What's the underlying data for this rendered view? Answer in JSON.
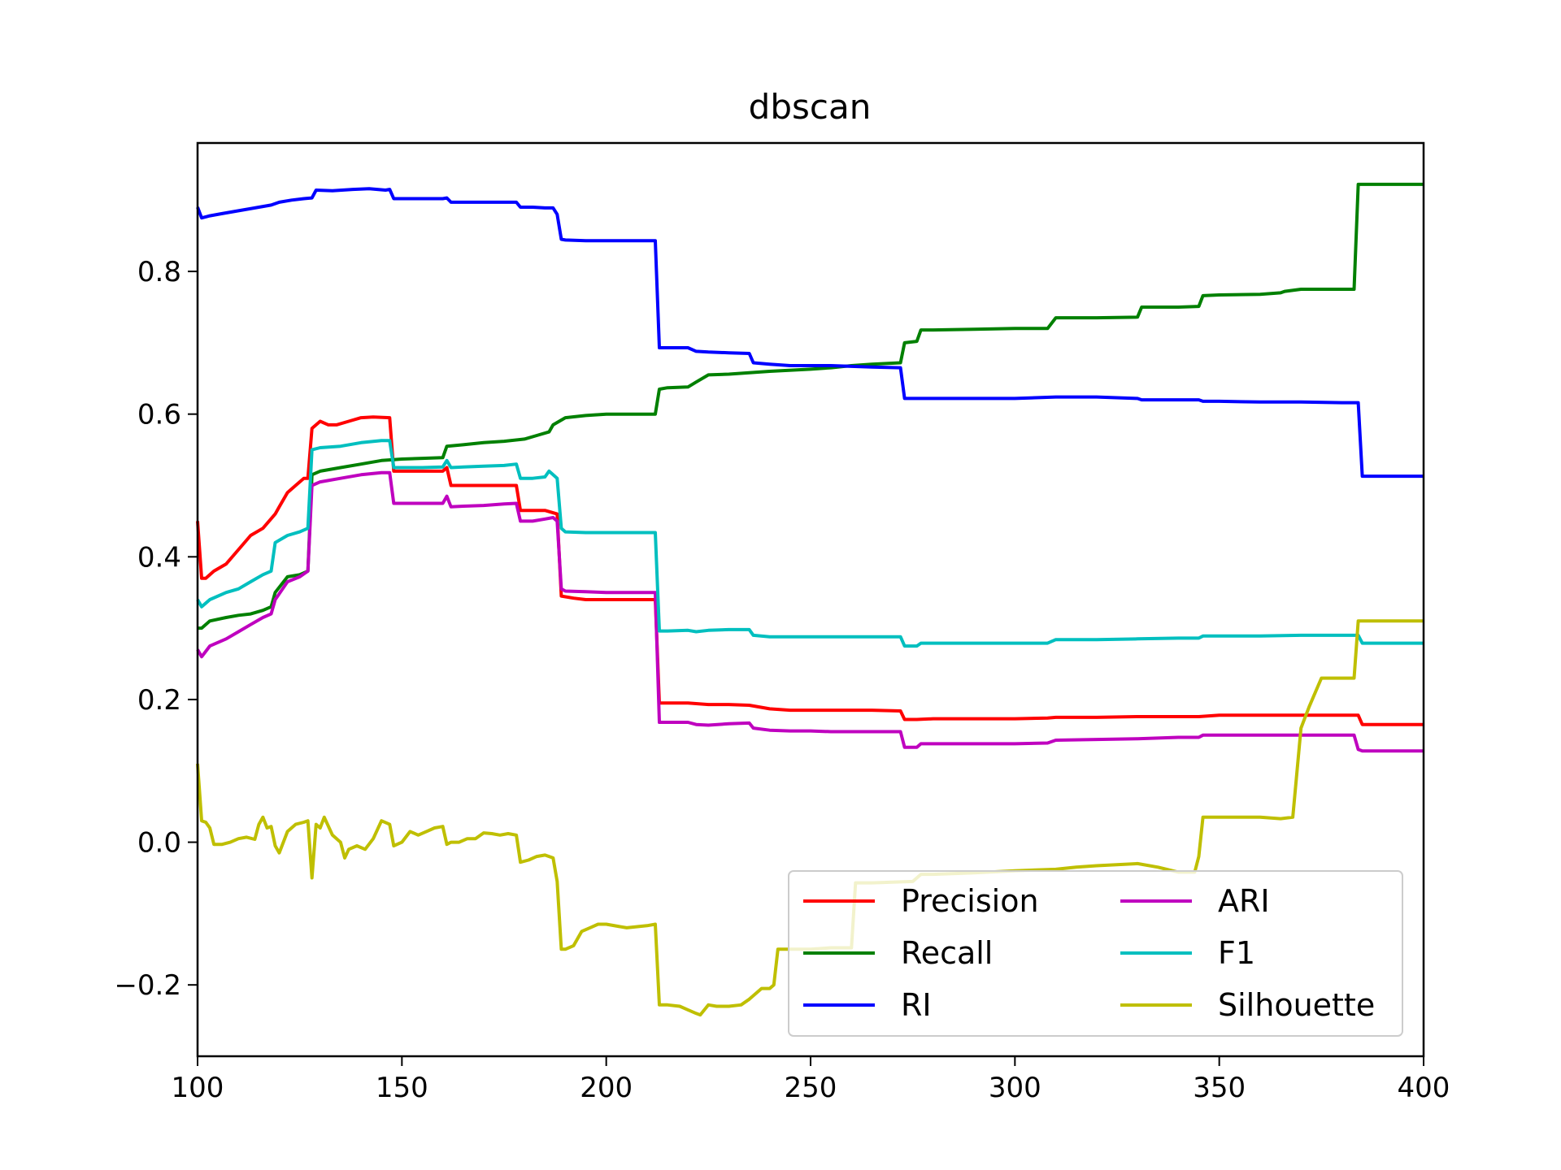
{
  "chart_data": {
    "type": "line",
    "title": "dbscan",
    "xlabel": "",
    "ylabel": "",
    "xlim": [
      100,
      400
    ],
    "ylim": [
      -0.3,
      0.98
    ],
    "xticks": [
      100,
      150,
      200,
      250,
      300,
      350,
      400
    ],
    "xtick_labels": [
      "100",
      "150",
      "200",
      "250",
      "300",
      "350",
      "400"
    ],
    "yticks": [
      -0.2,
      0.0,
      0.2,
      0.4,
      0.6,
      0.8
    ],
    "ytick_labels": [
      "−0.2",
      "0.0",
      "0.2",
      "0.4",
      "0.6",
      "0.8"
    ],
    "grid": false,
    "legend_position": "lower-right",
    "legend_columns": 2,
    "series": [
      {
        "name": "Precision",
        "color": "#ff0000",
        "x": [
          100,
          101,
          102,
          104,
          107,
          110,
          113,
          116,
          119,
          120,
          122,
          124,
          126,
          127,
          128,
          130,
          132,
          134,
          137,
          140,
          143,
          147,
          148,
          150,
          155,
          160,
          161,
          162,
          165,
          170,
          175,
          178,
          179,
          182,
          185,
          188,
          189,
          192,
          195,
          200,
          205,
          212,
          213,
          220,
          225,
          230,
          235,
          240,
          245,
          250,
          255,
          260,
          265,
          272,
          273,
          276,
          280,
          290,
          300,
          308,
          310,
          320,
          330,
          340,
          345,
          350,
          360,
          370,
          380,
          384,
          385,
          390,
          400
        ],
        "y": [
          0.45,
          0.37,
          0.37,
          0.38,
          0.39,
          0.41,
          0.43,
          0.44,
          0.46,
          0.47,
          0.49,
          0.5,
          0.51,
          0.51,
          0.58,
          0.59,
          0.585,
          0.585,
          0.59,
          0.595,
          0.596,
          0.595,
          0.52,
          0.52,
          0.52,
          0.52,
          0.525,
          0.5,
          0.5,
          0.5,
          0.5,
          0.5,
          0.465,
          0.465,
          0.465,
          0.46,
          0.345,
          0.342,
          0.34,
          0.34,
          0.34,
          0.34,
          0.195,
          0.195,
          0.193,
          0.193,
          0.192,
          0.187,
          0.185,
          0.185,
          0.185,
          0.185,
          0.185,
          0.184,
          0.172,
          0.172,
          0.173,
          0.173,
          0.173,
          0.174,
          0.175,
          0.175,
          0.176,
          0.176,
          0.176,
          0.178,
          0.178,
          0.178,
          0.178,
          0.178,
          0.165,
          0.165,
          0.165
        ]
      },
      {
        "name": "Recall",
        "color": "#008000",
        "x": [
          100,
          101,
          103,
          107,
          110,
          113,
          116,
          118,
          119,
          122,
          125,
          127,
          128,
          130,
          135,
          140,
          145,
          150,
          155,
          160,
          161,
          165,
          170,
          175,
          180,
          183,
          186,
          187,
          190,
          195,
          200,
          205,
          212,
          213,
          215,
          220,
          222,
          225,
          230,
          235,
          240,
          250,
          255,
          260,
          265,
          272,
          273,
          276,
          277,
          280,
          290,
          300,
          308,
          310,
          320,
          330,
          331,
          340,
          345,
          346,
          350,
          360,
          365,
          366,
          370,
          375,
          380,
          383,
          384,
          385,
          390,
          400
        ],
        "y": [
          0.3,
          0.3,
          0.31,
          0.315,
          0.318,
          0.32,
          0.325,
          0.33,
          0.35,
          0.372,
          0.375,
          0.38,
          0.515,
          0.52,
          0.525,
          0.53,
          0.535,
          0.537,
          0.538,
          0.539,
          0.555,
          0.557,
          0.56,
          0.562,
          0.565,
          0.57,
          0.575,
          0.585,
          0.595,
          0.598,
          0.6,
          0.6,
          0.6,
          0.635,
          0.637,
          0.638,
          0.645,
          0.655,
          0.656,
          0.658,
          0.66,
          0.663,
          0.665,
          0.668,
          0.67,
          0.672,
          0.7,
          0.702,
          0.718,
          0.718,
          0.719,
          0.72,
          0.72,
          0.735,
          0.735,
          0.736,
          0.75,
          0.75,
          0.751,
          0.766,
          0.767,
          0.768,
          0.77,
          0.772,
          0.775,
          0.775,
          0.775,
          0.775,
          0.922,
          0.922,
          0.922,
          0.922
        ]
      },
      {
        "name": "RI",
        "color": "#0000ff",
        "x": [
          100,
          101,
          103,
          106,
          110,
          115,
          118,
          120,
          123,
          126,
          128,
          129,
          133,
          138,
          142,
          146,
          147,
          148,
          150,
          155,
          160,
          161,
          162,
          165,
          170,
          175,
          178,
          179,
          182,
          185,
          187,
          188,
          189,
          190,
          195,
          200,
          212,
          213,
          215,
          220,
          222,
          225,
          230,
          235,
          236,
          240,
          245,
          250,
          255,
          260,
          265,
          272,
          273,
          276,
          280,
          290,
          300,
          310,
          320,
          330,
          331,
          340,
          345,
          346,
          350,
          360,
          370,
          380,
          383,
          384,
          385,
          390,
          400
        ],
        "y": [
          0.89,
          0.875,
          0.878,
          0.881,
          0.885,
          0.89,
          0.893,
          0.897,
          0.9,
          0.902,
          0.903,
          0.914,
          0.913,
          0.915,
          0.916,
          0.914,
          0.915,
          0.902,
          0.902,
          0.902,
          0.902,
          0.903,
          0.897,
          0.897,
          0.897,
          0.897,
          0.897,
          0.89,
          0.89,
          0.889,
          0.889,
          0.88,
          0.845,
          0.844,
          0.843,
          0.843,
          0.843,
          0.693,
          0.693,
          0.693,
          0.688,
          0.687,
          0.686,
          0.685,
          0.672,
          0.67,
          0.668,
          0.668,
          0.668,
          0.667,
          0.666,
          0.665,
          0.622,
          0.622,
          0.622,
          0.622,
          0.622,
          0.624,
          0.624,
          0.622,
          0.62,
          0.62,
          0.62,
          0.618,
          0.618,
          0.617,
          0.617,
          0.616,
          0.616,
          0.616,
          0.513,
          0.513,
          0.513
        ]
      },
      {
        "name": "ARI",
        "color": "#bf00bf",
        "x": [
          100,
          101,
          103,
          107,
          110,
          113,
          116,
          118,
          119,
          122,
          125,
          127,
          128,
          130,
          135,
          140,
          145,
          147,
          148,
          150,
          155,
          160,
          161,
          162,
          165,
          170,
          175,
          178,
          179,
          182,
          185,
          187,
          188,
          189,
          190,
          195,
          200,
          212,
          213,
          215,
          220,
          222,
          225,
          230,
          235,
          236,
          240,
          245,
          250,
          255,
          260,
          265,
          272,
          273,
          276,
          277,
          280,
          290,
          300,
          308,
          310,
          320,
          330,
          340,
          345,
          346,
          350,
          360,
          370,
          380,
          383,
          384,
          385,
          390,
          400
        ],
        "y": [
          0.27,
          0.26,
          0.275,
          0.285,
          0.295,
          0.305,
          0.315,
          0.32,
          0.34,
          0.365,
          0.372,
          0.38,
          0.5,
          0.505,
          0.51,
          0.515,
          0.518,
          0.518,
          0.475,
          0.475,
          0.475,
          0.475,
          0.485,
          0.47,
          0.471,
          0.472,
          0.474,
          0.475,
          0.45,
          0.45,
          0.453,
          0.455,
          0.45,
          0.355,
          0.352,
          0.351,
          0.35,
          0.35,
          0.168,
          0.168,
          0.168,
          0.165,
          0.164,
          0.166,
          0.167,
          0.16,
          0.157,
          0.156,
          0.156,
          0.155,
          0.155,
          0.155,
          0.155,
          0.133,
          0.133,
          0.138,
          0.138,
          0.138,
          0.138,
          0.139,
          0.143,
          0.144,
          0.145,
          0.147,
          0.147,
          0.15,
          0.15,
          0.15,
          0.15,
          0.15,
          0.15,
          0.13,
          0.128,
          0.128,
          0.128
        ]
      },
      {
        "name": "F1",
        "color": "#00bfbf",
        "x": [
          100,
          101,
          103,
          107,
          110,
          113,
          116,
          118,
          119,
          122,
          125,
          127,
          128,
          130,
          135,
          140,
          145,
          147,
          148,
          150,
          155,
          160,
          161,
          162,
          165,
          170,
          175,
          178,
          179,
          182,
          185,
          186,
          187,
          188,
          189,
          190,
          195,
          200,
          212,
          213,
          215,
          220,
          222,
          225,
          230,
          235,
          236,
          240,
          245,
          250,
          255,
          260,
          265,
          272,
          273,
          276,
          277,
          280,
          290,
          300,
          308,
          310,
          320,
          330,
          340,
          345,
          346,
          350,
          360,
          370,
          380,
          383,
          384,
          385,
          390,
          400
        ],
        "y": [
          0.34,
          0.33,
          0.34,
          0.35,
          0.355,
          0.365,
          0.375,
          0.38,
          0.42,
          0.43,
          0.435,
          0.44,
          0.55,
          0.553,
          0.555,
          0.56,
          0.563,
          0.563,
          0.525,
          0.525,
          0.525,
          0.526,
          0.535,
          0.525,
          0.526,
          0.527,
          0.528,
          0.53,
          0.51,
          0.51,
          0.512,
          0.52,
          0.515,
          0.51,
          0.44,
          0.435,
          0.434,
          0.434,
          0.434,
          0.296,
          0.296,
          0.297,
          0.295,
          0.297,
          0.298,
          0.298,
          0.29,
          0.288,
          0.288,
          0.288,
          0.288,
          0.288,
          0.288,
          0.288,
          0.275,
          0.275,
          0.279,
          0.279,
          0.279,
          0.279,
          0.279,
          0.284,
          0.284,
          0.285,
          0.286,
          0.286,
          0.289,
          0.289,
          0.289,
          0.29,
          0.29,
          0.29,
          0.29,
          0.279,
          0.279,
          0.279
        ]
      },
      {
        "name": "Silhouette",
        "color": "#bfbf00",
        "x": [
          100,
          101,
          102,
          103,
          104,
          106,
          108,
          110,
          112,
          114,
          115,
          116,
          117,
          118,
          119,
          120,
          122,
          124,
          126,
          127,
          128,
          129,
          130,
          131,
          133,
          135,
          136,
          137,
          139,
          141,
          143,
          145,
          147,
          148,
          150,
          152,
          154,
          156,
          158,
          160,
          161,
          162,
          164,
          166,
          168,
          170,
          172,
          174,
          176,
          178,
          179,
          181,
          183,
          185,
          187,
          188,
          189,
          190,
          192,
          194,
          196,
          198,
          200,
          205,
          210,
          212,
          213,
          215,
          218,
          220,
          222,
          223,
          225,
          227,
          230,
          233,
          235,
          238,
          240,
          241,
          242,
          245,
          250,
          255,
          260,
          261,
          265,
          270,
          275,
          277,
          280,
          290,
          300,
          310,
          315,
          320,
          330,
          335,
          340,
          344,
          345,
          346,
          350,
          355,
          360,
          365,
          368,
          370,
          372,
          375,
          380,
          383,
          384,
          385,
          390,
          400
        ],
        "y": [
          0.11,
          0.03,
          0.028,
          0.02,
          -0.003,
          -0.003,
          0.0,
          0.005,
          0.007,
          0.004,
          0.025,
          0.035,
          0.02,
          0.022,
          -0.005,
          -0.015,
          0.015,
          0.025,
          0.028,
          0.03,
          -0.05,
          0.025,
          0.02,
          0.035,
          0.01,
          0.0,
          -0.022,
          -0.01,
          -0.005,
          -0.01,
          0.005,
          0.03,
          0.025,
          -0.005,
          0.0,
          0.015,
          0.01,
          0.015,
          0.02,
          0.022,
          -0.003,
          0.0,
          0.0,
          0.005,
          0.005,
          0.013,
          0.012,
          0.01,
          0.012,
          0.01,
          -0.028,
          -0.025,
          -0.02,
          -0.018,
          -0.022,
          -0.055,
          -0.15,
          -0.15,
          -0.145,
          -0.125,
          -0.12,
          -0.115,
          -0.115,
          -0.12,
          -0.117,
          -0.115,
          -0.228,
          -0.228,
          -0.23,
          -0.235,
          -0.24,
          -0.242,
          -0.228,
          -0.23,
          -0.23,
          -0.228,
          -0.22,
          -0.205,
          -0.205,
          -0.2,
          -0.15,
          -0.15,
          -0.15,
          -0.148,
          -0.148,
          -0.057,
          -0.057,
          -0.056,
          -0.055,
          -0.045,
          -0.045,
          -0.043,
          -0.04,
          -0.038,
          -0.035,
          -0.033,
          -0.03,
          -0.035,
          -0.042,
          -0.042,
          -0.02,
          0.035,
          0.035,
          0.035,
          0.035,
          0.033,
          0.035,
          0.16,
          0.19,
          0.23,
          0.23,
          0.23,
          0.31,
          0.31,
          0.31,
          0.31
        ]
      }
    ]
  }
}
